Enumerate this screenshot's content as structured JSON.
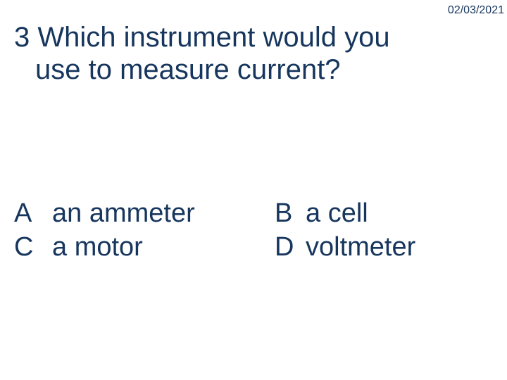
{
  "colors": {
    "text": "#17365d",
    "background": "#ffffff"
  },
  "typography": {
    "font_family": "Comic Sans MS",
    "date_fontsize": 16,
    "question_fontsize": 40,
    "option_fontsize": 38
  },
  "date": "02/03/2021",
  "question": {
    "number": "3",
    "line1": "Which instrument would you",
    "line2": "use to measure current?"
  },
  "options": {
    "A": {
      "letter": "A",
      "text": "an ammeter"
    },
    "B": {
      "letter": "B",
      "text": "a cell"
    },
    "C": {
      "letter": "C",
      "text": "a motor"
    },
    "D": {
      "letter": "D",
      "text": "voltmeter"
    }
  }
}
